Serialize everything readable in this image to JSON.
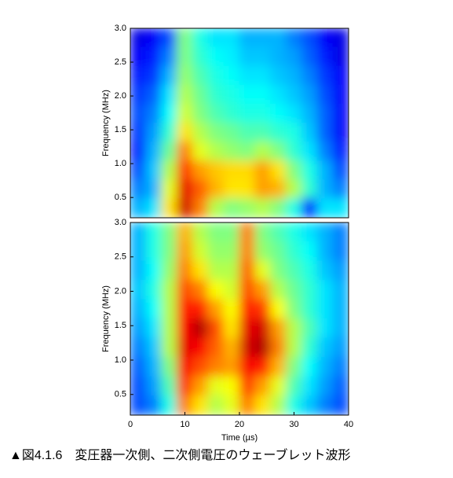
{
  "chart_data": [
    {
      "type": "heatmap",
      "ylabel": "Frequency (MHz)",
      "colormap": "jet",
      "clim": [
        0,
        1
      ],
      "xlim": [
        0,
        40
      ],
      "ylim": [
        0.2,
        3.0
      ],
      "yticks": [
        0.5,
        {
          "value": 1,
          "label": "1.0"
        },
        1.5,
        {
          "value": 2,
          "label": "2.0"
        },
        2.5,
        {
          "value": 3,
          "label": "3.0"
        }
      ],
      "x": [
        1.43,
        4.29,
        7.14,
        10,
        12.86,
        15.71,
        18.57,
        21.43,
        24.29,
        27.14,
        30,
        32.86,
        35.71,
        38.57
      ],
      "y": [
        2.86,
        2.58,
        2.3,
        2.02,
        1.74,
        1.46,
        1.18,
        0.9,
        0.62,
        0.34
      ],
      "z": [
        [
          0.1,
          0.12,
          0.2,
          0.5,
          0.4,
          0.35,
          0.35,
          0.3,
          0.3,
          0.3,
          0.25,
          0.2,
          0.12,
          0.1
        ],
        [
          0.12,
          0.15,
          0.25,
          0.5,
          0.42,
          0.38,
          0.36,
          0.32,
          0.32,
          0.3,
          0.28,
          0.22,
          0.15,
          0.1
        ],
        [
          0.15,
          0.18,
          0.3,
          0.52,
          0.45,
          0.4,
          0.38,
          0.35,
          0.35,
          0.32,
          0.3,
          0.25,
          0.18,
          0.12
        ],
        [
          0.18,
          0.22,
          0.35,
          0.55,
          0.48,
          0.42,
          0.4,
          0.38,
          0.38,
          0.35,
          0.32,
          0.28,
          0.2,
          0.12
        ],
        [
          0.2,
          0.25,
          0.38,
          0.58,
          0.5,
          0.45,
          0.42,
          0.4,
          0.4,
          0.38,
          0.35,
          0.3,
          0.22,
          0.12
        ],
        [
          0.18,
          0.28,
          0.42,
          0.65,
          0.55,
          0.5,
          0.48,
          0.45,
          0.45,
          0.42,
          0.4,
          0.32,
          0.22,
          0.12
        ],
        [
          0.15,
          0.3,
          0.48,
          0.75,
          0.6,
          0.55,
          0.52,
          0.5,
          0.55,
          0.5,
          0.42,
          0.35,
          0.25,
          0.15
        ],
        [
          0.2,
          0.32,
          0.55,
          0.82,
          0.72,
          0.68,
          0.66,
          0.66,
          0.72,
          0.65,
          0.5,
          0.4,
          0.3,
          0.2
        ],
        [
          0.25,
          0.3,
          0.6,
          0.9,
          0.78,
          0.7,
          0.65,
          0.65,
          0.72,
          0.7,
          0.55,
          0.42,
          0.3,
          0.25
        ],
        [
          0.3,
          0.35,
          0.65,
          0.92,
          0.75,
          0.55,
          0.5,
          0.52,
          0.55,
          0.5,
          0.4,
          0.15,
          0.35,
          0.35
        ]
      ]
    },
    {
      "type": "heatmap",
      "ylabel": "Frequency (MHz)",
      "xlabel": "Time (µs)",
      "colormap": "jet",
      "clim": [
        0,
        1
      ],
      "xlim": [
        0,
        40
      ],
      "ylim": [
        0.2,
        3.0
      ],
      "xticks": [
        0,
        10,
        20,
        30,
        40
      ],
      "yticks": [
        0.5,
        {
          "value": 1,
          "label": "1.0"
        },
        1.5,
        {
          "value": 2,
          "label": "2.0"
        },
        2.5,
        {
          "value": 3,
          "label": "3.0"
        }
      ],
      "x": [
        1.43,
        4.29,
        7.14,
        10,
        12.86,
        15.71,
        18.57,
        21.43,
        24.29,
        27.14,
        30,
        32.86,
        35.71,
        38.57
      ],
      "y": [
        2.86,
        2.58,
        2.3,
        2.02,
        1.74,
        1.46,
        1.18,
        0.9,
        0.62,
        0.34
      ],
      "z": [
        [
          0.3,
          0.4,
          0.5,
          0.7,
          0.55,
          0.5,
          0.5,
          0.75,
          0.5,
          0.45,
          0.4,
          0.35,
          0.3,
          0.25
        ],
        [
          0.3,
          0.4,
          0.5,
          0.72,
          0.58,
          0.52,
          0.52,
          0.75,
          0.52,
          0.48,
          0.42,
          0.38,
          0.3,
          0.25
        ],
        [
          0.3,
          0.38,
          0.52,
          0.75,
          0.65,
          0.55,
          0.55,
          0.78,
          0.6,
          0.5,
          0.45,
          0.4,
          0.32,
          0.28
        ],
        [
          0.32,
          0.4,
          0.55,
          0.8,
          0.75,
          0.62,
          0.58,
          0.8,
          0.72,
          0.55,
          0.48,
          0.42,
          0.35,
          0.3
        ],
        [
          0.3,
          0.38,
          0.55,
          0.85,
          0.85,
          0.72,
          0.62,
          0.85,
          0.82,
          0.62,
          0.5,
          0.42,
          0.35,
          0.3
        ],
        [
          0.28,
          0.35,
          0.55,
          0.88,
          0.95,
          0.8,
          0.65,
          0.9,
          0.92,
          0.72,
          0.55,
          0.45,
          0.35,
          0.3
        ],
        [
          0.25,
          0.32,
          0.55,
          0.9,
          0.88,
          0.78,
          0.7,
          0.92,
          0.95,
          0.75,
          0.55,
          0.42,
          0.32,
          0.28
        ],
        [
          0.22,
          0.3,
          0.5,
          0.88,
          0.8,
          0.75,
          0.72,
          0.88,
          0.85,
          0.7,
          0.5,
          0.38,
          0.3,
          0.25
        ],
        [
          0.2,
          0.28,
          0.45,
          0.82,
          0.72,
          0.6,
          0.62,
          0.82,
          0.72,
          0.6,
          0.45,
          0.35,
          0.28,
          0.22
        ],
        [
          0.2,
          0.25,
          0.4,
          0.75,
          0.65,
          0.55,
          0.6,
          0.75,
          0.65,
          0.55,
          0.4,
          0.32,
          0.25,
          0.2
        ]
      ]
    }
  ],
  "caption": "▲図4.1.6　変圧器一次側、二次側電圧のウェーブレット波形"
}
